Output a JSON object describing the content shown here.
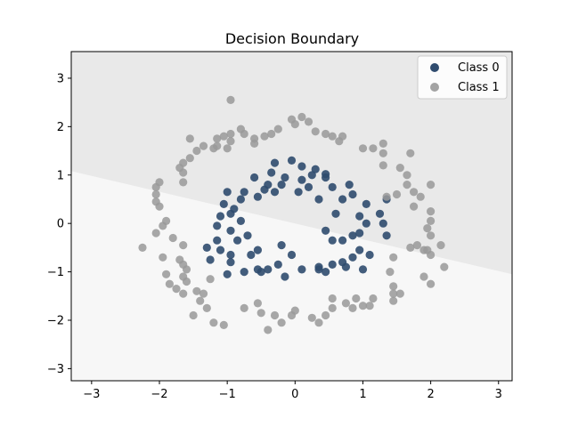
{
  "chart_data": {
    "type": "scatter",
    "title": "Decision Boundary",
    "xlabel": "",
    "ylabel": "",
    "xlim": [
      -3.3,
      3.2
    ],
    "ylim": [
      -3.25,
      3.55
    ],
    "xticks": [
      -3,
      -2,
      -1,
      0,
      1,
      2,
      3
    ],
    "yticks": [
      -3,
      -2,
      -1,
      0,
      1,
      2,
      3
    ],
    "legend_position": "top-right",
    "grid": false,
    "boundary": {
      "description": "linear decision boundary from (-3.3, 1.08) to (3.2, -1.05)",
      "line": [
        [
          -3.3,
          1.08
        ],
        [
          3.2,
          -1.05
        ]
      ],
      "upper_region_color": "#e9e9e9",
      "lower_region_color": "#f7f7f7"
    },
    "series": [
      {
        "name": "Class 0",
        "color": "#2f4b6e",
        "points": [
          [
            -0.05,
            1.3
          ],
          [
            0.1,
            1.18
          ],
          [
            0.3,
            1.12
          ],
          [
            0.45,
            1.02
          ],
          [
            0.25,
            1.0
          ],
          [
            -0.3,
            1.25
          ],
          [
            -0.35,
            1.05
          ],
          [
            -0.15,
            0.95
          ],
          [
            -0.4,
            0.8
          ],
          [
            -0.6,
            0.95
          ],
          [
            -0.45,
            0.7
          ],
          [
            -0.75,
            0.65
          ],
          [
            -0.8,
            0.5
          ],
          [
            -1.0,
            0.65
          ],
          [
            -1.05,
            0.4
          ],
          [
            -0.95,
            0.2
          ],
          [
            -1.1,
            0.15
          ],
          [
            -1.15,
            -0.05
          ],
          [
            -0.95,
            -0.15
          ],
          [
            -0.85,
            -0.35
          ],
          [
            -1.15,
            -0.35
          ],
          [
            -1.1,
            -0.55
          ],
          [
            -0.95,
            -0.8
          ],
          [
            -0.65,
            -0.65
          ],
          [
            -0.55,
            -0.95
          ],
          [
            -0.4,
            -0.95
          ],
          [
            -0.25,
            -0.85
          ],
          [
            -0.05,
            -0.65
          ],
          [
            0.1,
            -0.95
          ],
          [
            0.35,
            -0.9
          ],
          [
            0.55,
            -0.85
          ],
          [
            0.7,
            -0.8
          ],
          [
            0.85,
            -0.7
          ],
          [
            0.95,
            -0.55
          ],
          [
            0.7,
            -0.35
          ],
          [
            0.95,
            -0.2
          ],
          [
            1.05,
            0.0
          ],
          [
            0.95,
            0.15
          ],
          [
            1.05,
            0.4
          ],
          [
            0.85,
            0.6
          ],
          [
            0.8,
            0.8
          ],
          [
            0.55,
            0.75
          ],
          [
            0.45,
            0.95
          ],
          [
            0.7,
            0.5
          ],
          [
            0.6,
            0.2
          ],
          [
            0.35,
            0.5
          ],
          [
            0.2,
            0.75
          ],
          [
            0.1,
            0.9
          ],
          [
            1.35,
            0.5
          ],
          [
            1.25,
            0.2
          ],
          [
            1.3,
            0.0
          ],
          [
            -0.2,
            -0.45
          ],
          [
            -0.55,
            -0.55
          ],
          [
            0.45,
            -0.15
          ],
          [
            0.55,
            -0.35
          ],
          [
            0.85,
            -0.25
          ],
          [
            1.1,
            -0.65
          ],
          [
            1.35,
            -0.25
          ],
          [
            -0.7,
            -0.25
          ],
          [
            -0.95,
            -0.65
          ],
          [
            -1.25,
            -0.75
          ],
          [
            -1.3,
            -0.5
          ],
          [
            -1.0,
            -1.05
          ],
          [
            -0.75,
            -1.0
          ],
          [
            -0.5,
            -1.0
          ],
          [
            -0.15,
            -1.1
          ],
          [
            0.35,
            -0.95
          ],
          [
            0.45,
            -1.0
          ],
          [
            0.75,
            -0.9
          ],
          [
            1.0,
            -0.95
          ],
          [
            -0.2,
            0.8
          ],
          [
            -0.3,
            0.65
          ],
          [
            -0.55,
            0.55
          ],
          [
            -0.9,
            0.3
          ],
          [
            -0.8,
            0.05
          ],
          [
            0.05,
            0.65
          ]
        ]
      },
      {
        "name": "Class 1",
        "color": "#999999",
        "points": [
          [
            -0.95,
            2.55
          ],
          [
            -0.8,
            1.95
          ],
          [
            -0.95,
            1.85
          ],
          [
            -1.05,
            1.8
          ],
          [
            -1.15,
            1.75
          ],
          [
            -1.15,
            1.6
          ],
          [
            -1.2,
            1.55
          ],
          [
            -1.35,
            1.6
          ],
          [
            -1.45,
            1.5
          ],
          [
            -1.55,
            1.35
          ],
          [
            -1.65,
            1.25
          ],
          [
            -1.7,
            1.15
          ],
          [
            -1.55,
            1.75
          ],
          [
            -1.65,
            1.05
          ],
          [
            -1.65,
            0.85
          ],
          [
            -2.0,
            0.85
          ],
          [
            -2.05,
            0.75
          ],
          [
            -2.05,
            0.6
          ],
          [
            -2.05,
            0.45
          ],
          [
            -2.0,
            0.35
          ],
          [
            -1.9,
            0.05
          ],
          [
            -1.95,
            -0.05
          ],
          [
            -2.05,
            -0.2
          ],
          [
            -1.8,
            -0.3
          ],
          [
            -2.25,
            -0.5
          ],
          [
            -1.65,
            -0.45
          ],
          [
            -1.95,
            -0.7
          ],
          [
            -1.7,
            -0.75
          ],
          [
            -1.65,
            -0.85
          ],
          [
            -1.6,
            -0.95
          ],
          [
            -1.65,
            -1.1
          ],
          [
            -1.6,
            -1.2
          ],
          [
            -1.45,
            -1.4
          ],
          [
            -1.35,
            -1.45
          ],
          [
            -1.65,
            -1.45
          ],
          [
            -1.3,
            -1.75
          ],
          [
            -1.2,
            -2.05
          ],
          [
            -1.05,
            -2.1
          ],
          [
            -0.75,
            -1.75
          ],
          [
            -0.55,
            -1.65
          ],
          [
            -0.3,
            -1.9
          ],
          [
            -0.2,
            -2.05
          ],
          [
            -0.05,
            -1.9
          ],
          [
            0.0,
            -1.8
          ],
          [
            0.25,
            -1.95
          ],
          [
            0.35,
            -2.05
          ],
          [
            0.45,
            -1.9
          ],
          [
            0.55,
            -1.75
          ],
          [
            0.55,
            -1.55
          ],
          [
            0.75,
            -1.65
          ],
          [
            0.85,
            -1.75
          ],
          [
            1.0,
            -1.7
          ],
          [
            1.1,
            -1.7
          ],
          [
            1.45,
            -1.6
          ],
          [
            1.45,
            -1.45
          ],
          [
            1.55,
            -1.45
          ],
          [
            1.45,
            -1.3
          ],
          [
            1.4,
            -1.0
          ],
          [
            1.45,
            -0.7
          ],
          [
            1.7,
            -0.5
          ],
          [
            1.8,
            -0.45
          ],
          [
            1.9,
            -0.55
          ],
          [
            2.0,
            -0.65
          ],
          [
            2.15,
            -0.45
          ],
          [
            2.2,
            -0.9
          ],
          [
            1.9,
            -1.1
          ],
          [
            2.0,
            -1.25
          ],
          [
            1.95,
            -0.55
          ],
          [
            2.0,
            -0.25
          ],
          [
            2.0,
            0.05
          ],
          [
            2.0,
            0.25
          ],
          [
            1.85,
            0.55
          ],
          [
            2.0,
            0.8
          ],
          [
            1.75,
            0.65
          ],
          [
            1.65,
            0.8
          ],
          [
            1.65,
            1.0
          ],
          [
            1.55,
            1.15
          ],
          [
            1.7,
            1.45
          ],
          [
            1.3,
            1.2
          ],
          [
            1.3,
            1.45
          ],
          [
            1.3,
            1.65
          ],
          [
            1.15,
            1.55
          ],
          [
            1.0,
            1.55
          ],
          [
            0.7,
            1.8
          ],
          [
            0.55,
            1.8
          ],
          [
            0.3,
            1.9
          ],
          [
            0.2,
            2.1
          ],
          [
            0.1,
            2.2
          ],
          [
            -0.05,
            2.15
          ],
          [
            0.0,
            2.05
          ],
          [
            -0.25,
            1.95
          ],
          [
            -0.35,
            1.85
          ],
          [
            -0.45,
            1.8
          ],
          [
            -0.6,
            1.75
          ],
          [
            -0.75,
            1.85
          ],
          [
            -1.0,
            1.55
          ],
          [
            -0.95,
            1.7
          ],
          [
            -0.6,
            1.65
          ],
          [
            0.45,
            1.85
          ],
          [
            0.65,
            1.7
          ],
          [
            1.35,
            0.55
          ],
          [
            1.5,
            0.6
          ],
          [
            1.75,
            0.35
          ],
          [
            1.95,
            -0.1
          ],
          [
            -1.25,
            -1.15
          ],
          [
            -1.4,
            -1.6
          ],
          [
            -1.5,
            -1.9
          ],
          [
            -1.75,
            -1.35
          ],
          [
            -1.85,
            -1.25
          ],
          [
            -1.9,
            -1.05
          ],
          [
            0.9,
            -1.55
          ],
          [
            1.15,
            -1.55
          ],
          [
            -0.5,
            -1.85
          ],
          [
            -0.4,
            -2.2
          ]
        ]
      }
    ]
  }
}
